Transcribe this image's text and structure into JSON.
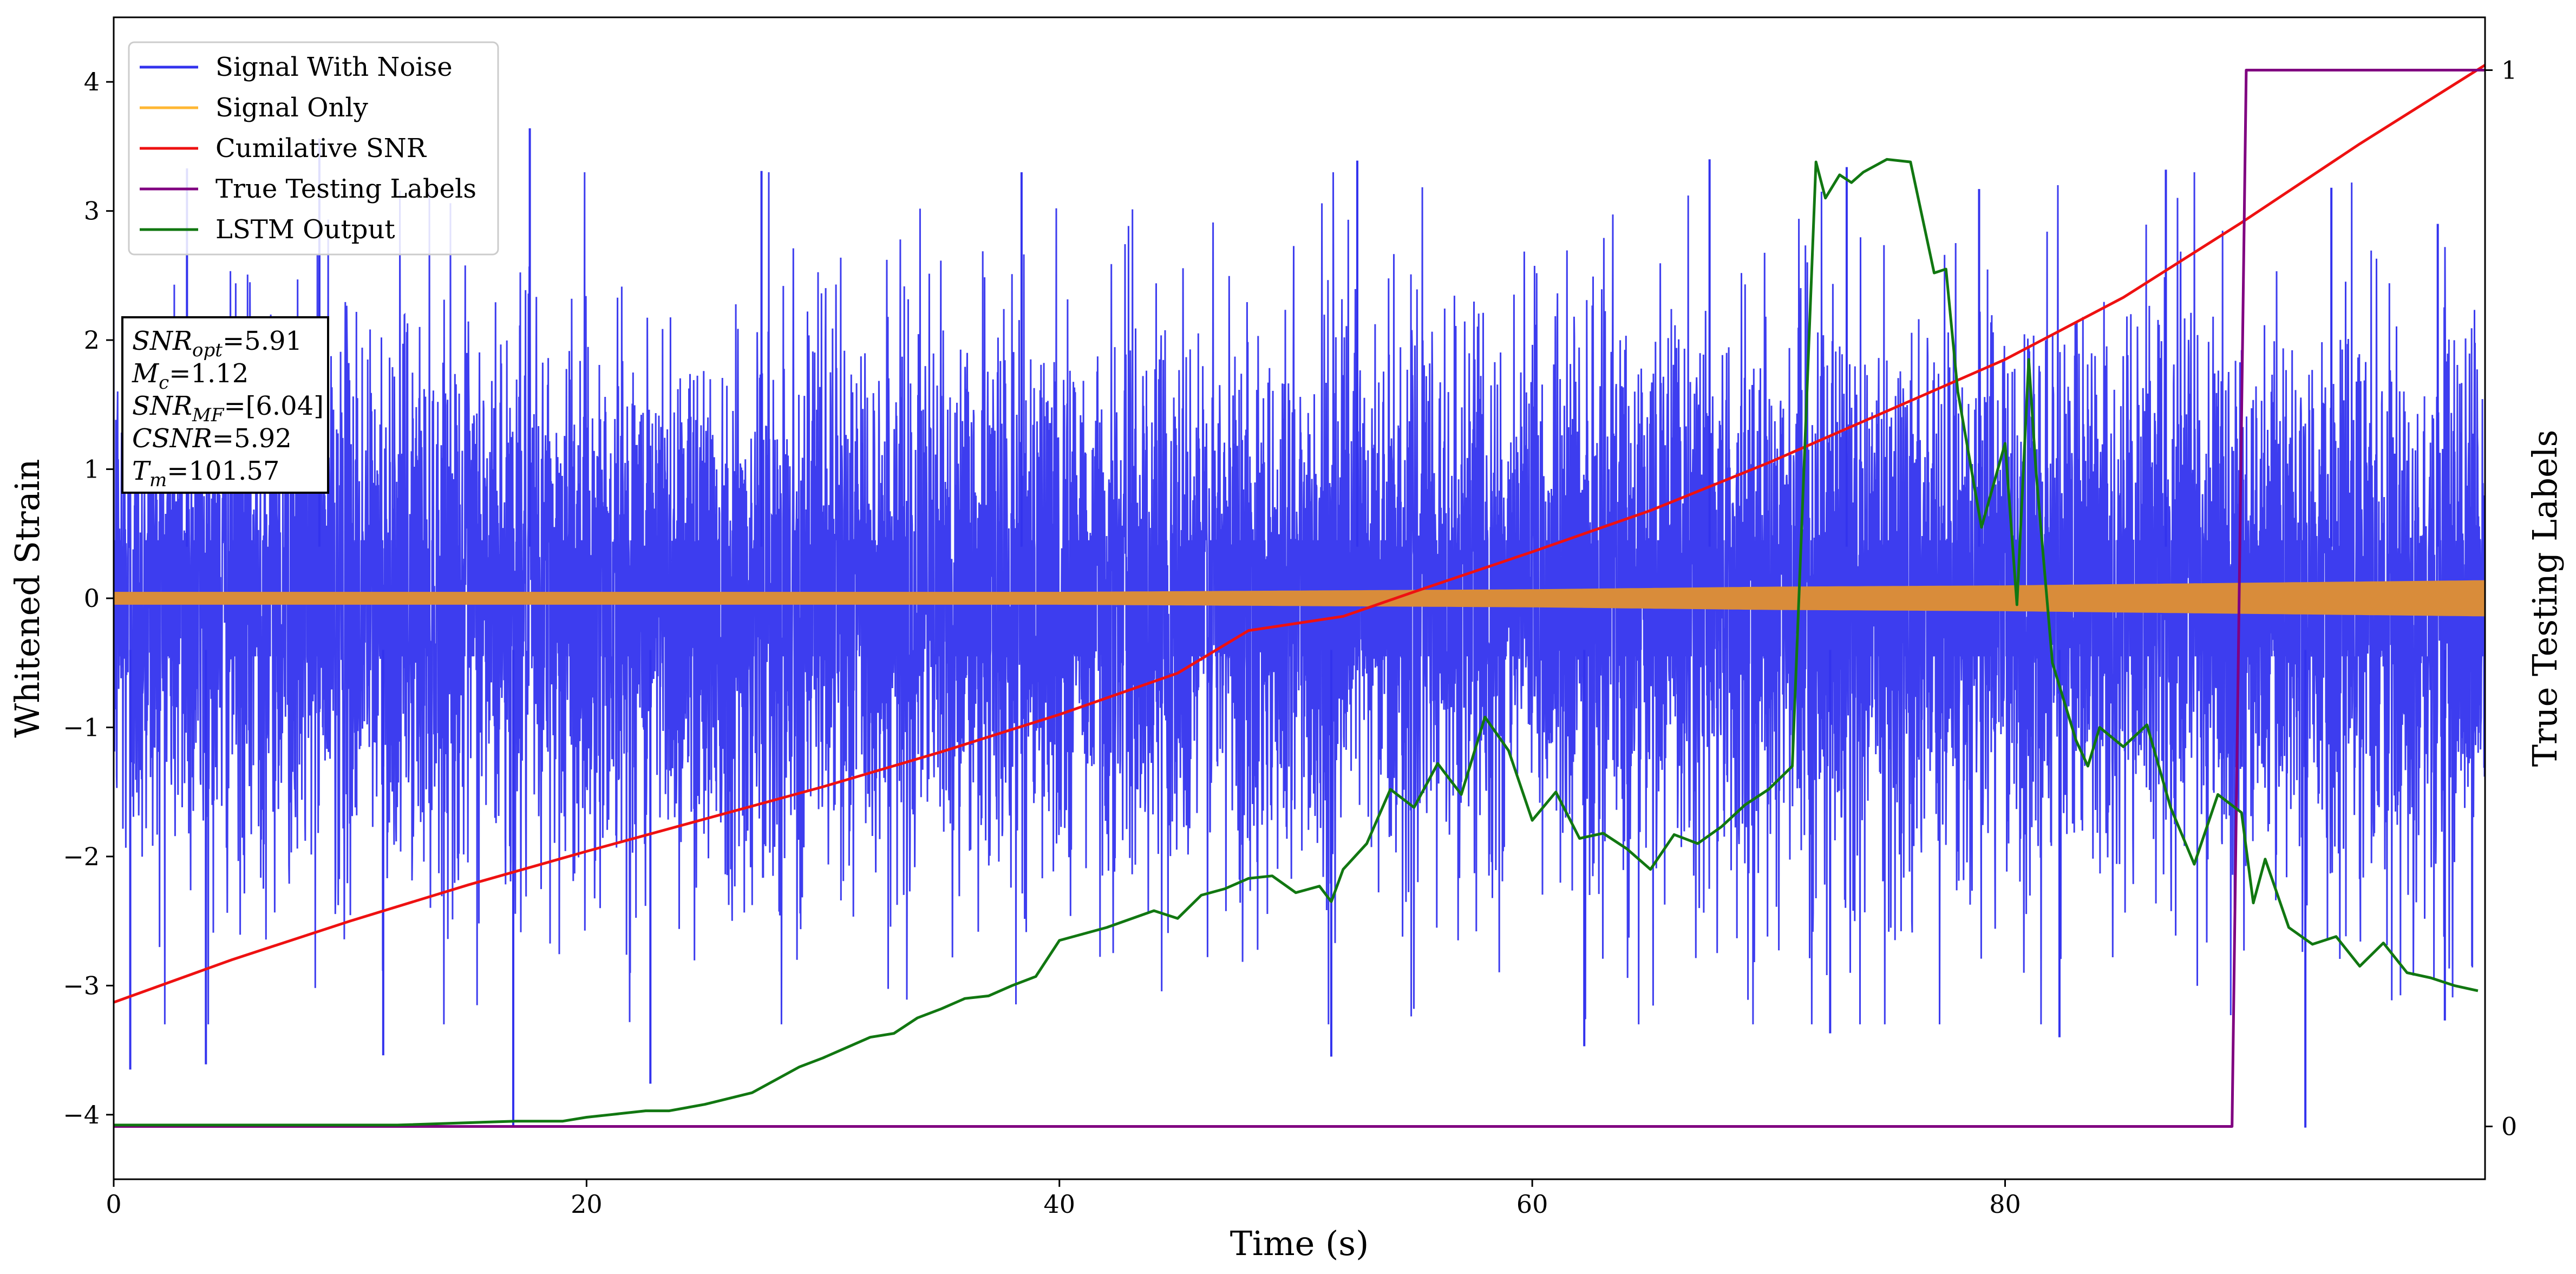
{
  "chart_data": {
    "type": "line",
    "xlabel": "Time (s)",
    "ylabel": "Whitened Strain",
    "y2label": "True Testing Labels",
    "xlim": [
      0,
      100.3
    ],
    "ylim": [
      -4.5,
      4.5
    ],
    "y2lim": [
      -0.05,
      1.05
    ],
    "x_ticks": [
      0,
      20,
      40,
      60,
      80
    ],
    "y_ticks": [
      -4,
      -3,
      -2,
      -1,
      0,
      1,
      2,
      3,
      4
    ],
    "y2_ticks": [
      0,
      1
    ],
    "x_tick_labels": [
      "0",
      "20",
      "40",
      "60",
      "80"
    ],
    "y_tick_labels": [
      "−4",
      "−3",
      "−2",
      "−1",
      "0",
      "1",
      "2",
      "3",
      "4"
    ],
    "y2_tick_labels": [
      "0",
      "1"
    ],
    "grid": false,
    "legend_position": "top-left",
    "colors": {
      "signal_with_noise": "#3333ee",
      "signal_only": "#ffb733",
      "signal_only_rendered": "#d98c3a",
      "cumulative_snr": "#ee1111",
      "true_labels": "#800080",
      "lstm_output": "#117711"
    },
    "series": [
      {
        "name": "Signal With Noise",
        "kind": "noise_band",
        "axis": "left",
        "approx_peak_up": [
          [
            3.1,
            3.33
          ],
          [
            8.7,
            3.56
          ],
          [
            17.6,
            3.64
          ],
          [
            27.4,
            3.31
          ],
          [
            38.4,
            3.3
          ],
          [
            52.6,
            3.39
          ],
          [
            67.5,
            3.4
          ],
          [
            73.3,
            3.34
          ],
          [
            78.9,
            3.17
          ],
          [
            86.8,
            3.32
          ],
          [
            93.8,
            3.18
          ],
          [
            98.3,
            2.9
          ]
        ],
        "approx_peak_down": [
          [
            0.7,
            -3.65
          ],
          [
            3.9,
            -3.61
          ],
          [
            11.4,
            -3.54
          ],
          [
            16.9,
            -4.1
          ],
          [
            22.7,
            -3.76
          ],
          [
            51.5,
            -3.55
          ],
          [
            62.2,
            -3.47
          ],
          [
            72.6,
            -3.37
          ],
          [
            82.3,
            -3.4
          ],
          [
            92.7,
            -4.1
          ],
          [
            98.6,
            -3.27
          ]
        ]
      },
      {
        "name": "Signal Only",
        "kind": "band",
        "axis": "left",
        "x": [
          0,
          20,
          40,
          50,
          60,
          70,
          80,
          90,
          100.3
        ],
        "amplitude": [
          0.05,
          0.05,
          0.05,
          0.06,
          0.07,
          0.09,
          0.1,
          0.12,
          0.14
        ]
      },
      {
        "name": "Cumilative SNR",
        "axis": "left",
        "x": [
          0,
          5,
          10,
          15,
          20,
          25,
          30,
          35,
          40,
          45,
          48,
          52,
          55,
          60,
          65,
          70,
          75,
          80,
          85,
          90,
          95,
          100.3
        ],
        "y": [
          -3.13,
          -2.8,
          -2.5,
          -2.22,
          -1.96,
          -1.71,
          -1.46,
          -1.19,
          -0.9,
          -0.58,
          -0.25,
          -0.14,
          0.05,
          0.36,
          0.68,
          1.05,
          1.45,
          1.85,
          2.33,
          2.91,
          3.52,
          4.13
        ]
      },
      {
        "name": "True Testing Labels",
        "axis": "right",
        "x": [
          0,
          89.6,
          90.2,
          100.3
        ],
        "y": [
          0,
          0,
          1,
          1
        ]
      },
      {
        "name": "LSTM Output",
        "axis": "left",
        "x": [
          0,
          12,
          17,
          19,
          20,
          21,
          22.5,
          23.5,
          25,
          27,
          28,
          29,
          30,
          31,
          32,
          33,
          34,
          35,
          36,
          37,
          38,
          39,
          40,
          42,
          44,
          45,
          46,
          47,
          48,
          49,
          50,
          51,
          51.5,
          52,
          53,
          54,
          55,
          56,
          57,
          58,
          59,
          60,
          61,
          62,
          63,
          64,
          65,
          66,
          67,
          68,
          69,
          70,
          71,
          72,
          72.4,
          73,
          73.5,
          74,
          75,
          76,
          77,
          77.5,
          78,
          79,
          80,
          80.5,
          81,
          81.3,
          82,
          83,
          83.5,
          84,
          85,
          86,
          87,
          88,
          89,
          90,
          90.5,
          91,
          92,
          93,
          94,
          95,
          96,
          97,
          98,
          99,
          100
        ],
        "y": [
          -4.08,
          -4.08,
          -4.05,
          -4.05,
          -4.02,
          -4.0,
          -3.97,
          -3.97,
          -3.92,
          -3.83,
          -3.73,
          -3.63,
          -3.56,
          -3.48,
          -3.4,
          -3.37,
          -3.25,
          -3.18,
          -3.1,
          -3.08,
          -3.0,
          -2.93,
          -2.65,
          -2.55,
          -2.42,
          -2.48,
          -2.3,
          -2.25,
          -2.17,
          -2.15,
          -2.28,
          -2.23,
          -2.35,
          -2.1,
          -1.9,
          -1.48,
          -1.62,
          -1.28,
          -1.52,
          -0.92,
          -1.18,
          -1.72,
          -1.5,
          -1.86,
          -1.82,
          -1.94,
          -2.1,
          -1.83,
          -1.9,
          -1.77,
          -1.6,
          -1.48,
          -1.3,
          3.38,
          3.1,
          3.28,
          3.22,
          3.3,
          3.4,
          3.38,
          2.52,
          2.55,
          1.6,
          0.55,
          1.2,
          -0.05,
          1.85,
          1.0,
          -0.5,
          -1.1,
          -1.3,
          -1.0,
          -1.15,
          -0.98,
          -1.62,
          -2.06,
          -1.52,
          -1.66,
          -2.36,
          -2.02,
          -2.55,
          -2.68,
          -2.62,
          -2.85,
          -2.67,
          -2.9,
          -2.94,
          -3.0,
          -3.04
        ]
      }
    ],
    "info_box": {
      "lines": [
        {
          "label_main": "SNR",
          "label_sub": "opt",
          "value": "=5.91"
        },
        {
          "label_main": "M",
          "label_sub": "c",
          "value": "=1.12"
        },
        {
          "label_main": "SNR",
          "label_sub": "MF",
          "value": "=[6.04]"
        },
        {
          "label_main": "CSNR",
          "label_sub": "",
          "value": "=5.92"
        },
        {
          "label_main": "T",
          "label_sub": "m",
          "value": "=101.57"
        }
      ]
    }
  }
}
